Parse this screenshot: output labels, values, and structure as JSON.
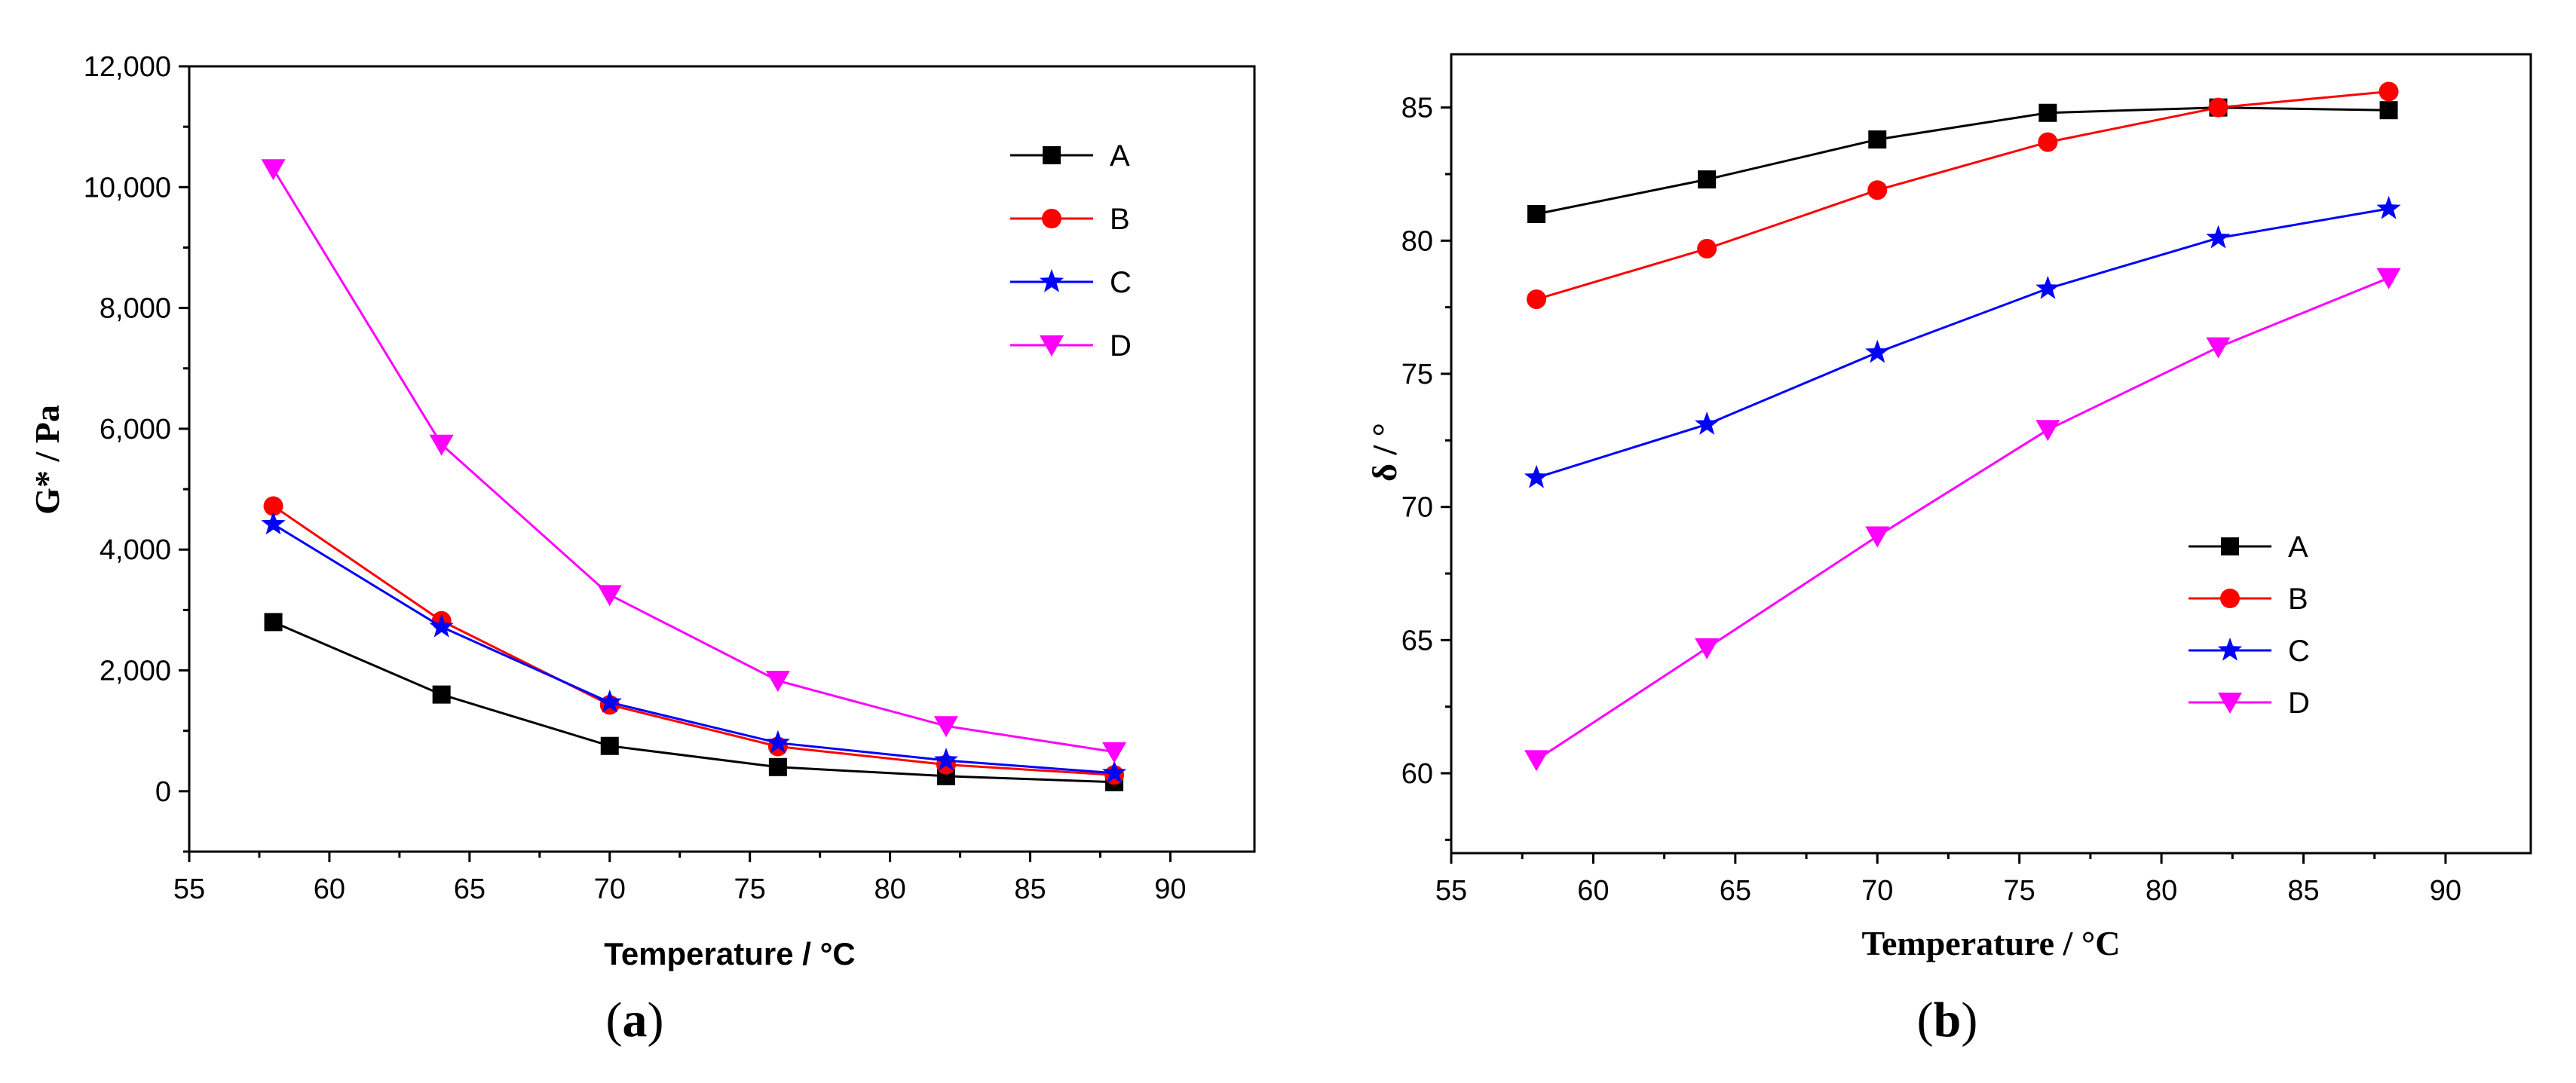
{
  "chart_data": [
    {
      "type": "line",
      "panel_label_open": "(",
      "panel_label_letter": "a",
      "panel_label_close": ")",
      "xlabel": "Temperature / °C",
      "ylabel": "G* / Pa",
      "xlim": [
        55,
        93
      ],
      "ylim": [
        -1000,
        12000
      ],
      "xticks": [
        55,
        60,
        65,
        70,
        75,
        80,
        85,
        90
      ],
      "yticks": [
        0,
        2000,
        4000,
        6000,
        8000,
        10000,
        12000
      ],
      "ytick_labels": [
        "0",
        "2,000",
        "4,000",
        "6,000",
        "8,000",
        "10,000",
        "12,000"
      ],
      "grid": false,
      "legend_position": "top-right",
      "x": [
        58,
        64,
        70,
        76,
        82,
        88
      ],
      "series": [
        {
          "name": "A",
          "color": "#000000",
          "marker": "square",
          "values": [
            2800,
            1600,
            750,
            400,
            250,
            150
          ]
        },
        {
          "name": "B",
          "color": "#ff0000",
          "marker": "circle",
          "values": [
            4720,
            2820,
            1430,
            740,
            440,
            270
          ]
        },
        {
          "name": "C",
          "color": "#0000ff",
          "marker": "star",
          "values": [
            4420,
            2720,
            1470,
            800,
            510,
            300
          ]
        },
        {
          "name": "D",
          "color": "#ff00ff",
          "marker": "triangle-down",
          "values": [
            10300,
            5740,
            3250,
            1830,
            1080,
            650
          ]
        }
      ]
    },
    {
      "type": "line",
      "panel_label_open": "(",
      "panel_label_letter": "b",
      "panel_label_close": ")",
      "xlabel": "Temperature / °C",
      "ylabel": "δ / °",
      "xlim": [
        55,
        93
      ],
      "ylim": [
        57,
        87
      ],
      "xticks": [
        55,
        60,
        65,
        70,
        75,
        80,
        85,
        90
      ],
      "yticks": [
        60,
        65,
        70,
        75,
        80,
        85
      ],
      "ytick_labels": [
        "60",
        "65",
        "70",
        "75",
        "80",
        "85"
      ],
      "grid": false,
      "legend_position": "center-right",
      "x": [
        58,
        64,
        70,
        76,
        82,
        88
      ],
      "series": [
        {
          "name": "A",
          "color": "#000000",
          "marker": "square",
          "values": [
            81.0,
            82.3,
            83.8,
            84.8,
            85.0,
            84.9
          ]
        },
        {
          "name": "B",
          "color": "#ff0000",
          "marker": "circle",
          "values": [
            77.8,
            79.7,
            81.9,
            83.7,
            85.0,
            85.6
          ]
        },
        {
          "name": "C",
          "color": "#0000ff",
          "marker": "star",
          "values": [
            71.1,
            73.1,
            75.8,
            78.2,
            80.1,
            81.2
          ]
        },
        {
          "name": "D",
          "color": "#ff00ff",
          "marker": "triangle-down",
          "values": [
            60.5,
            64.7,
            68.9,
            72.9,
            76.0,
            78.6
          ]
        }
      ]
    }
  ]
}
